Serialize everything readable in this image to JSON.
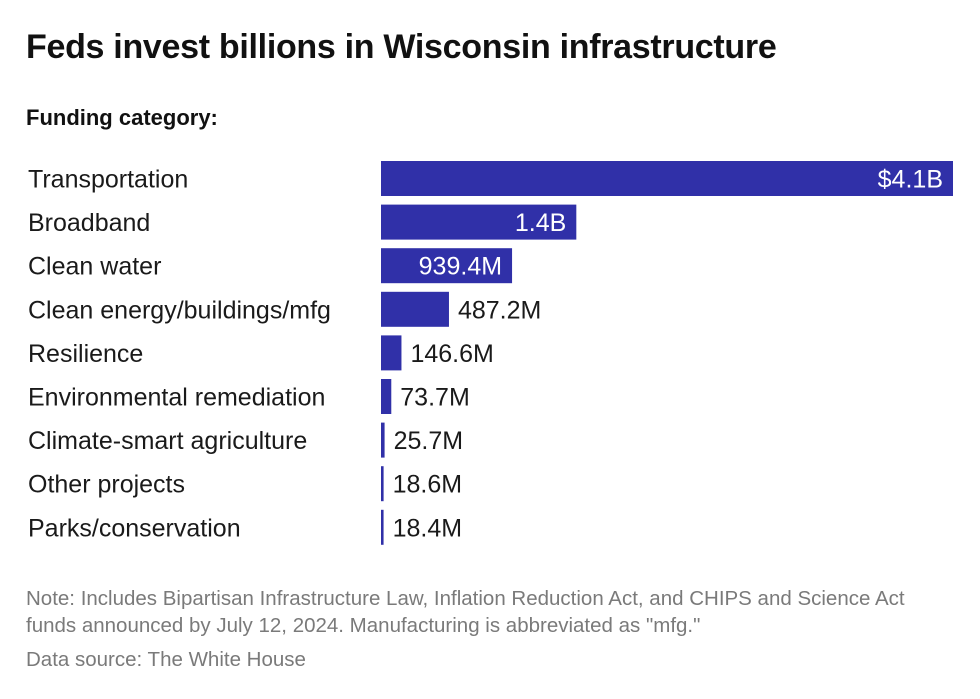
{
  "header": {
    "title": "Feds invest billions in Wisconsin infrastructure",
    "subtitle": "Funding category:"
  },
  "colors": {
    "bar": "#3030a8",
    "label_inside": "#ffffff",
    "label_outside": "#1a1a1a"
  },
  "chart_data": {
    "type": "bar",
    "orientation": "horizontal",
    "title": "Feds invest billions in Wisconsin infrastructure",
    "ylabel": "Funding category:",
    "categories": [
      "Transportation",
      "Broadband",
      "Clean water",
      "Clean energy/buildings/mfg",
      "Resilience",
      "Environmental remediation",
      "Climate-smart agriculture",
      "Other projects",
      "Parks/conservation"
    ],
    "values": [
      4100,
      1400,
      939.4,
      487.2,
      146.6,
      73.7,
      25.7,
      18.6,
      18.4
    ],
    "unit": "millions of dollars",
    "value_labels": [
      "$4.1B",
      "1.4B",
      "939.4M",
      "487.2M",
      "146.6M",
      "73.7M",
      "25.7M",
      "18.6M",
      "18.4M"
    ],
    "xlim": [
      0,
      4100
    ],
    "grid": false,
    "legend": "none"
  },
  "footer": {
    "note": "Note: Includes Bipartisan Infrastructure Law, Inflation Reduction Act, and CHIPS and Science Act funds announced by July 12, 2024. Manufacturing is abbreviated as \"mfg.\"",
    "source": "Data source: The White House"
  }
}
